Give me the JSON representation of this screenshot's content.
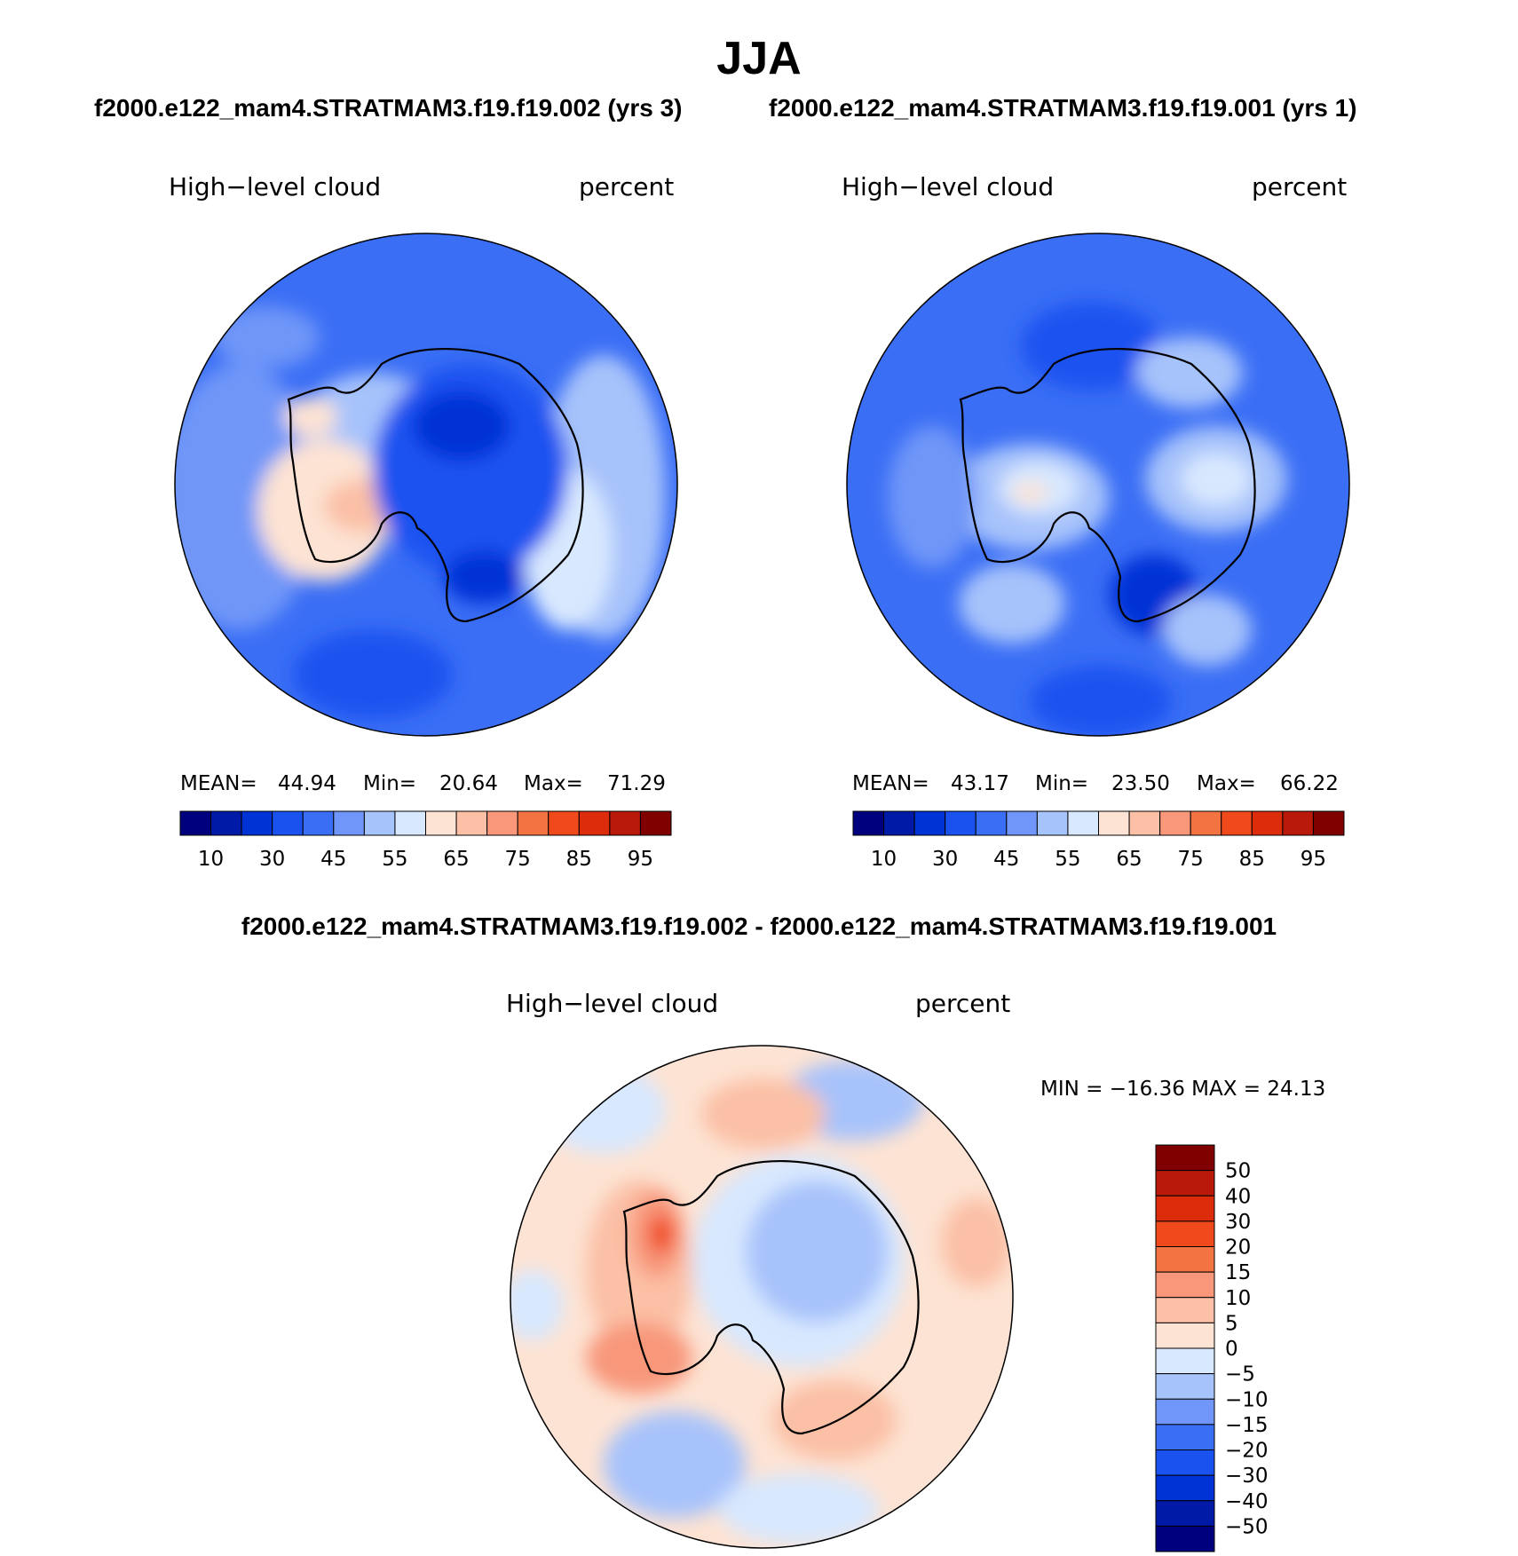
{
  "figure": {
    "season": "JJA",
    "case_a_title": "f2000.e122_mam4.STRATMAM3.f19.f19.002 (yrs 3)",
    "case_b_title": "f2000.e122_mam4.STRATMAM3.f19.f19.001 (yrs 1)",
    "diff_title": "f2000.e122_mam4.STRATMAM3.f19.f19.002 - f2000.e122_mam4.STRATMAM3.f19.f19.001"
  },
  "panels": [
    {
      "variable": "High−level cloud",
      "units": "percent",
      "mean_label": "MEAN=",
      "mean": "44.94",
      "min_label": "Min=",
      "min": "20.64",
      "max_label": "Max=",
      "max": "71.29"
    },
    {
      "variable": "High−level cloud",
      "units": "percent",
      "mean_label": "MEAN=",
      "mean": "43.17",
      "min_label": "Min=",
      "min": "23.50",
      "max_label": "Max=",
      "max": "66.22"
    }
  ],
  "diff_panel": {
    "variable": "High−level cloud",
    "units": "percent",
    "minmax_text": "MIN = −16.36 MAX =  24.13"
  },
  "colorbar_main": {
    "labels": [
      "10",
      "30",
      "45",
      "55",
      "65",
      "75",
      "85",
      "95"
    ],
    "levels": [
      5,
      10,
      20,
      30,
      40,
      45,
      50,
      55,
      60,
      65,
      70,
      75,
      80,
      85,
      90,
      95
    ],
    "colors": [
      "#00007f",
      "#001aa8",
      "#0033d6",
      "#1a52f0",
      "#3a6ef5",
      "#6f96f8",
      "#a7c3fb",
      "#d8e8fe",
      "#fde3d3",
      "#fbc0a6",
      "#f8977a",
      "#f47343",
      "#f04a1c",
      "#dd2c0b",
      "#b8190a",
      "#800000"
    ]
  },
  "colorbar_diff": {
    "labels": [
      "50",
      "40",
      "30",
      "20",
      "15",
      "10",
      "5",
      "0",
      "−5",
      "−10",
      "−15",
      "−20",
      "−30",
      "−40",
      "−50"
    ],
    "colors": [
      "#800000",
      "#b8190a",
      "#dd2c0b",
      "#f04a1c",
      "#f47343",
      "#f8977a",
      "#fbc0a6",
      "#fde3d3",
      "#d8e8fe",
      "#a7c3fb",
      "#6f96f8",
      "#3a6ef5",
      "#1a52f0",
      "#0033d6",
      "#001aa8",
      "#00007f"
    ]
  }
}
